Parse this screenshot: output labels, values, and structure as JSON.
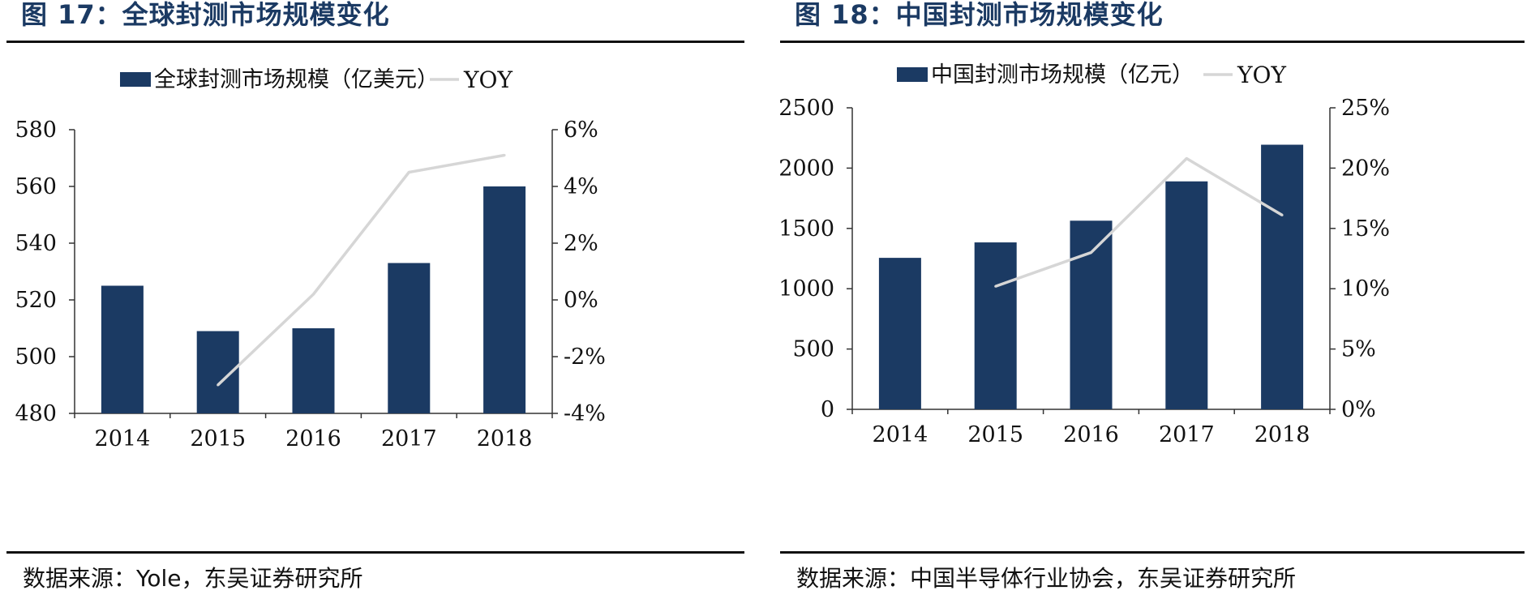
{
  "left": {
    "title": "图 17：全球封测市场规模变化",
    "source": "数据来源：Yole，东吴证券研究所"
  },
  "right": {
    "title": "图 18：中国封测市场规模变化",
    "source": "数据来源：中国半导体行业协会，东吴证券研究所"
  },
  "colors": {
    "bar": "#1b3a63",
    "line": "#d6d6d6",
    "title": "#1b3a63"
  },
  "chart_data": [
    {
      "type": "bar",
      "title": "图 17：全球封测市场规模变化",
      "categories": [
        "2014",
        "2015",
        "2016",
        "2017",
        "2018"
      ],
      "series": [
        {
          "name": "全球封测市场规模（亿美元）",
          "type": "bar",
          "axis": "left",
          "values": [
            525,
            509,
            510,
            533,
            560
          ]
        },
        {
          "name": "YOY",
          "type": "line",
          "axis": "right",
          "values": [
            null,
            -3.0,
            0.2,
            4.5,
            5.1
          ]
        }
      ],
      "ylim": [
        480,
        580
      ],
      "yticks": [
        "580",
        "560",
        "540",
        "520",
        "500",
        "480"
      ],
      "y2lim": [
        -4,
        6
      ],
      "y2ticks": [
        "6%",
        "4%",
        "2%",
        "0%",
        "-2%",
        "-4%"
      ],
      "xlabel": "",
      "ylabel": "",
      "grid": false,
      "legend": "top"
    },
    {
      "type": "bar",
      "title": "图 18：中国封测市场规模变化",
      "categories": [
        "2014",
        "2015",
        "2016",
        "2017",
        "2018"
      ],
      "series": [
        {
          "name": "中国封测市场规模（亿元）",
          "type": "bar",
          "axis": "left",
          "values": [
            1256,
            1384,
            1564,
            1890,
            2194
          ]
        },
        {
          "name": "YOY",
          "type": "line",
          "axis": "right",
          "values": [
            null,
            10.2,
            13.0,
            20.8,
            16.1
          ]
        }
      ],
      "ylim": [
        0,
        2500
      ],
      "yticks": [
        "2500",
        "2000",
        "1500",
        "1000",
        "500",
        "0"
      ],
      "y2lim": [
        0,
        25
      ],
      "y2ticks": [
        "25%",
        "20%",
        "15%",
        "10%",
        "5%",
        "0%"
      ],
      "xlabel": "",
      "ylabel": "",
      "grid": false,
      "legend": "top"
    }
  ]
}
